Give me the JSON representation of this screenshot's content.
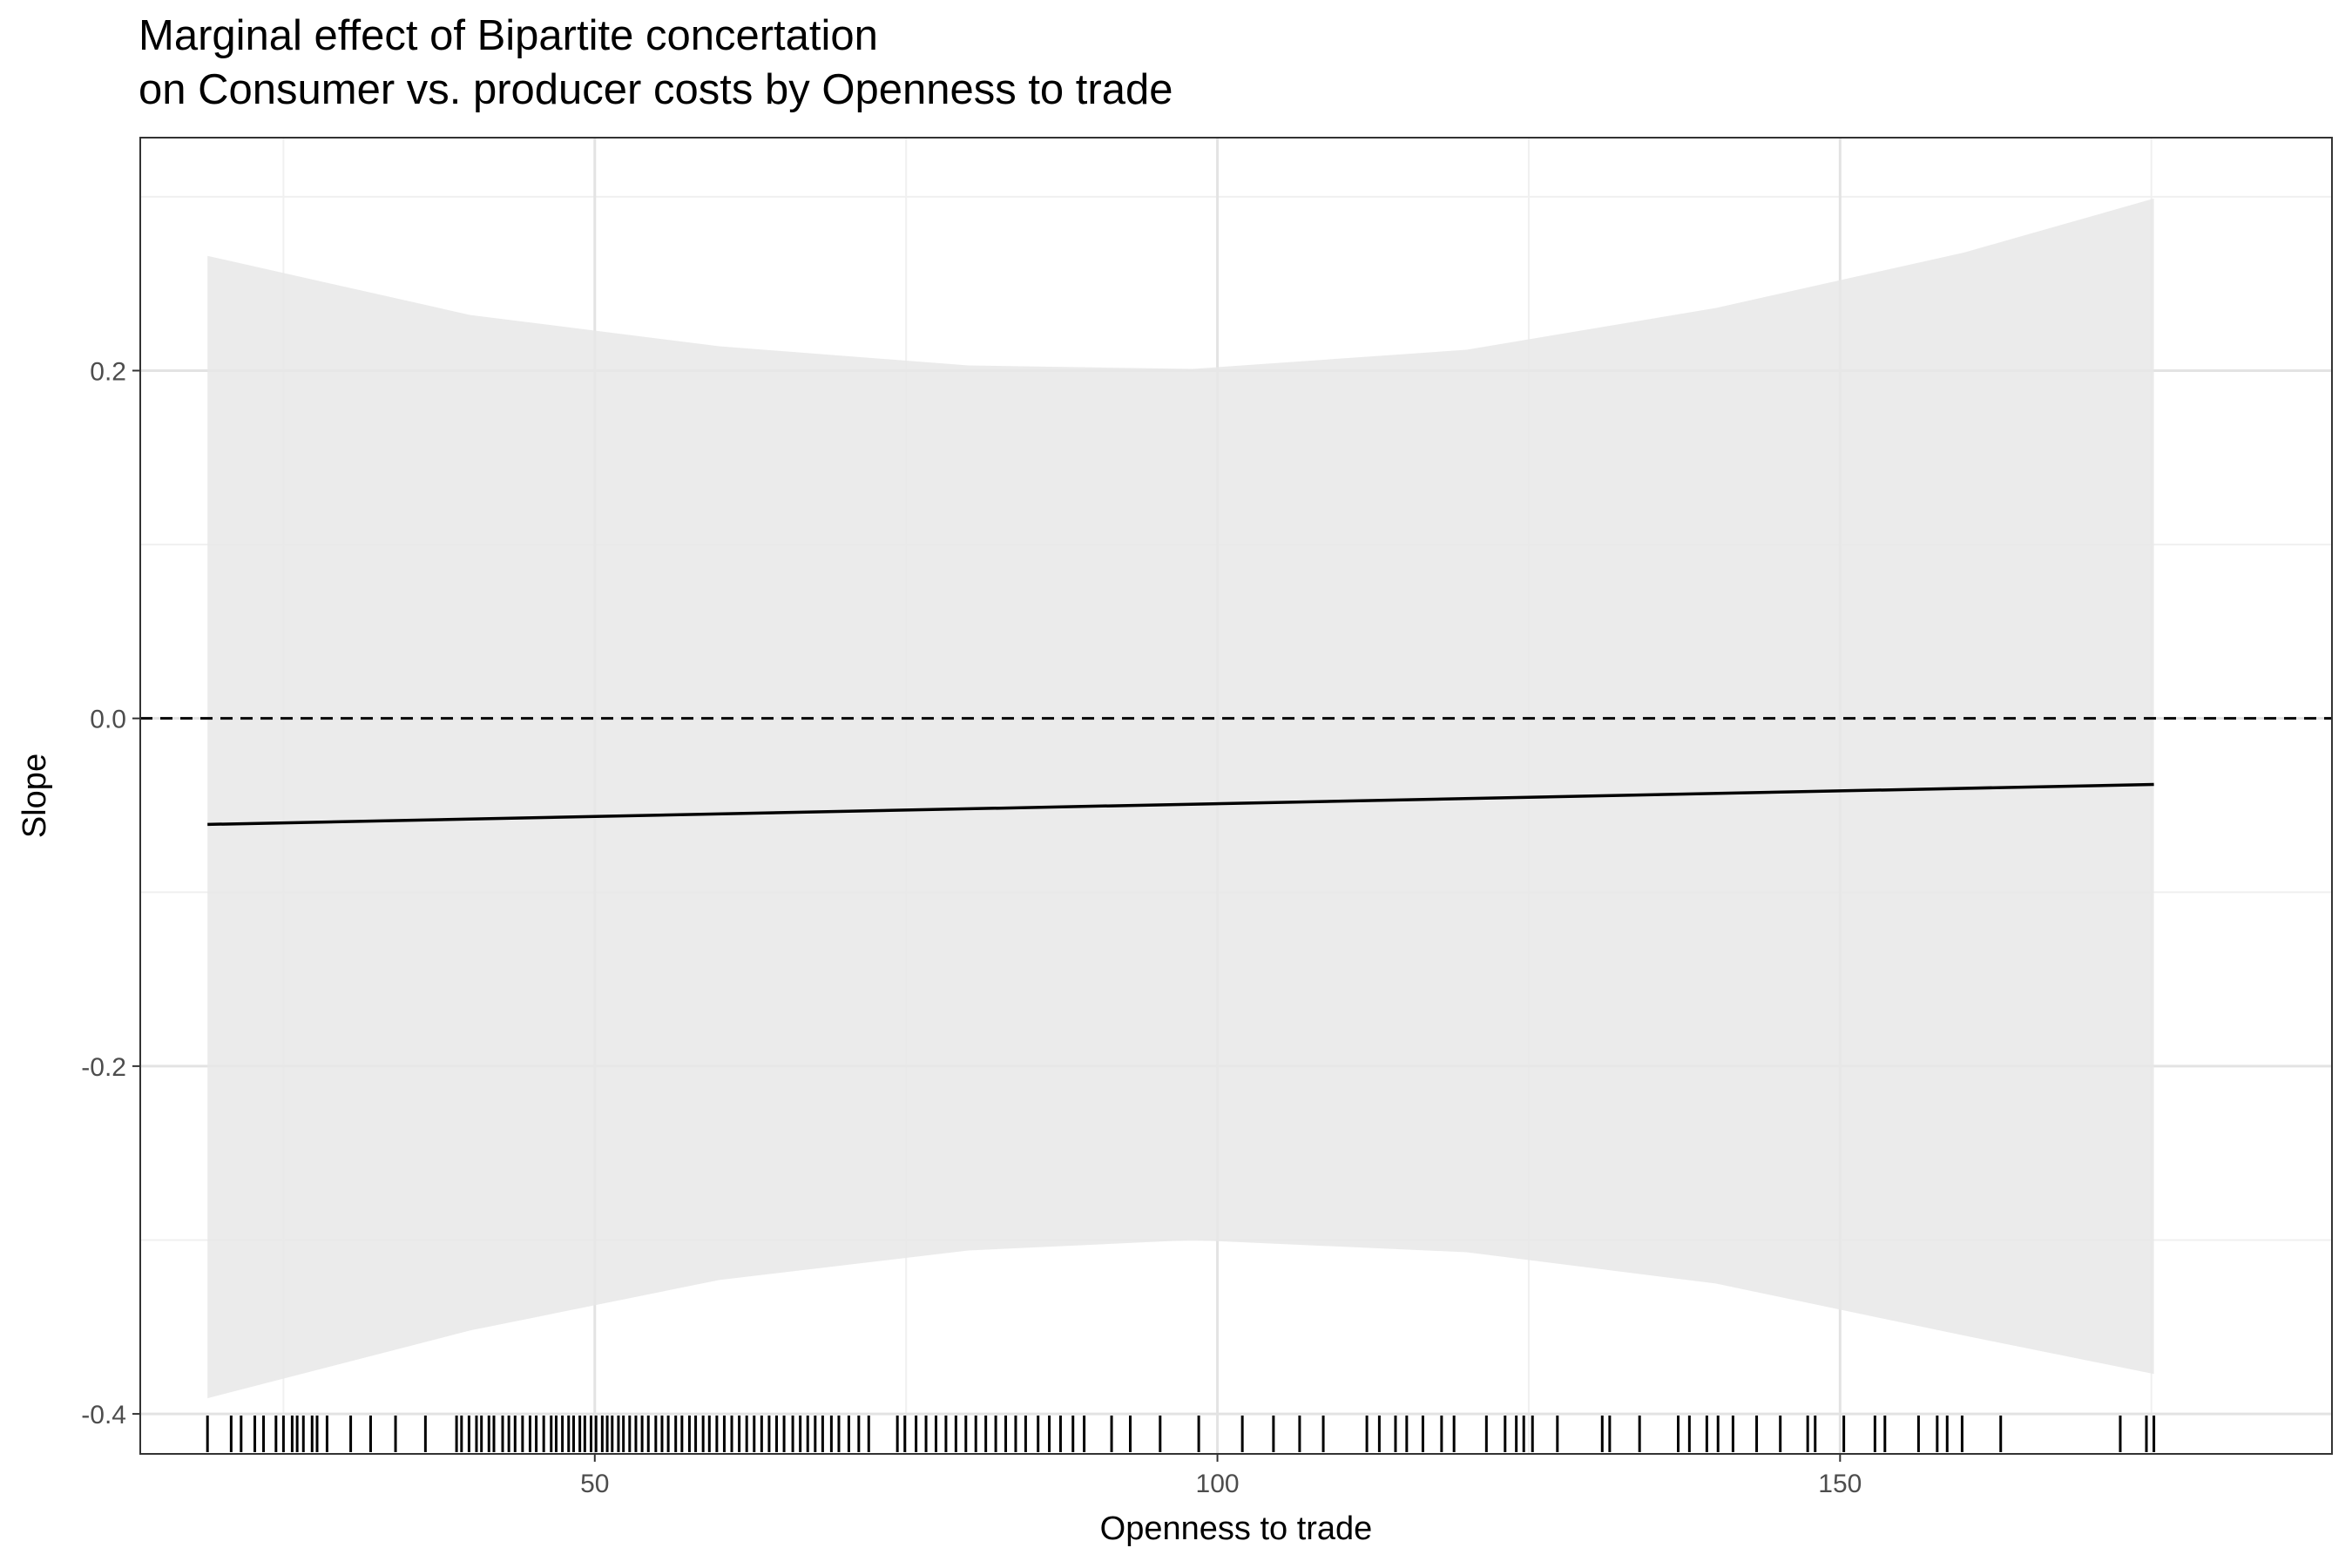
{
  "chart_data": {
    "type": "line",
    "title": "Marginal effect of Bipartite concertation",
    "subtitle": "on Consumer vs. producer costs by Openness to trade",
    "xlabel": "Openness to trade",
    "ylabel": "Slope",
    "xlim": [
      13.5,
      189.5
    ],
    "ylim": [
      -0.423,
      0.334
    ],
    "x_ticks": [
      50,
      100,
      150
    ],
    "x_tick_labels": [
      "50",
      "100",
      "150"
    ],
    "y_ticks": [
      -0.4,
      -0.2,
      0.0,
      0.2
    ],
    "y_tick_labels": [
      "-0.4",
      "-0.2",
      "0.0",
      "0.2"
    ],
    "grid": true,
    "reference_line": {
      "y": 0.0,
      "style": "dashed"
    },
    "series": [
      {
        "role": "marginal-effect",
        "x": [
          18.9,
          175.2
        ],
        "y": [
          -0.061,
          -0.038
        ],
        "color": "#000000"
      }
    ],
    "confidence_band": {
      "color": "#e8e8e8",
      "x": [
        18.9,
        40,
        60,
        80,
        98,
        120,
        140,
        160,
        175.2
      ],
      "upper": [
        0.266,
        0.232,
        0.214,
        0.203,
        0.201,
        0.212,
        0.236,
        0.268,
        0.299
      ],
      "lower": [
        -0.391,
        -0.352,
        -0.323,
        -0.306,
        -0.3,
        -0.307,
        -0.325,
        -0.355,
        -0.377
      ]
    },
    "rug": [
      18.9,
      20.8,
      21.6,
      22.7,
      23.4,
      24.4,
      25.0,
      25.7,
      26.1,
      26.6,
      27.3,
      27.7,
      28.5,
      30.4,
      32.0,
      34.0,
      36.4,
      38.9,
      39.3,
      39.9,
      40.5,
      40.9,
      41.5,
      41.9,
      42.6,
      43.1,
      43.6,
      44.2,
      44.8,
      45.3,
      45.9,
      46.5,
      46.9,
      47.4,
      47.9,
      48.3,
      48.8,
      49.2,
      49.7,
      50.1,
      50.6,
      51.0,
      51.4,
      51.9,
      52.3,
      52.8,
      53.3,
      53.8,
      54.3,
      54.9,
      55.4,
      55.9,
      56.5,
      57.0,
      57.6,
      58.1,
      58.7,
      59.2,
      59.8,
      60.4,
      61.0,
      61.6,
      62.2,
      62.8,
      63.4,
      64.0,
      64.6,
      65.2,
      65.9,
      66.5,
      67.1,
      67.7,
      68.3,
      69.0,
      69.6,
      70.4,
      71.2,
      72.0,
      74.3,
      74.9,
      75.8,
      76.6,
      77.4,
      78.2,
      79.0,
      79.8,
      80.6,
      81.4,
      82.2,
      83.0,
      83.8,
      84.6,
      85.6,
      86.5,
      87.4,
      88.4,
      89.3,
      91.5,
      93.0,
      95.4,
      98.5,
      102.0,
      104.5,
      106.6,
      108.5,
      112.0,
      113.0,
      114.3,
      115.2,
      116.5,
      118.0,
      119.0,
      121.6,
      123.1,
      124.0,
      124.6,
      125.3,
      127.3,
      130.9,
      131.5,
      133.9,
      137.0,
      137.9,
      139.3,
      140.2,
      141.4,
      143.3,
      145.2,
      147.4,
      148.0,
      150.3,
      152.8,
      153.6,
      156.3,
      157.8,
      158.6,
      159.8,
      162.9,
      172.5,
      174.6,
      175.2
    ]
  }
}
